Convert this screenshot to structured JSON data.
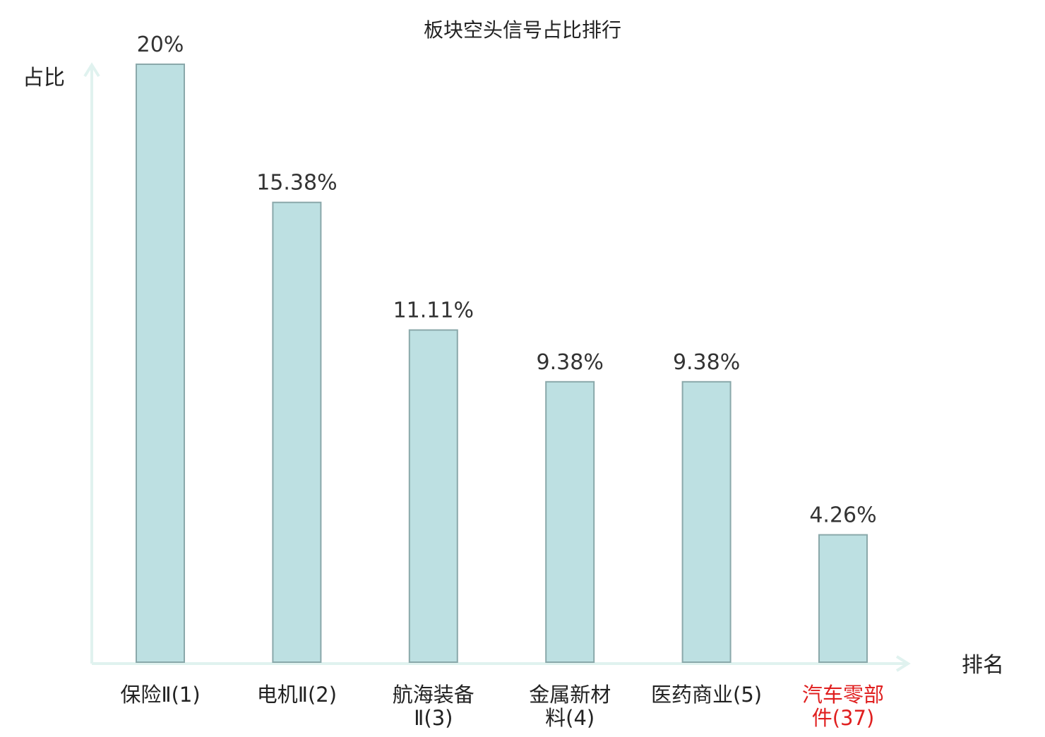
{
  "chart_data": {
    "type": "bar",
    "title": "板块空头信号占比排行",
    "ylabel": "占比",
    "xlabel": "排名",
    "ylim": [
      0,
      20
    ],
    "grid": false,
    "categories": [
      [
        "保险Ⅱ(1)"
      ],
      [
        "电机Ⅱ(2)"
      ],
      [
        "航海装备",
        "Ⅱ(3)"
      ],
      [
        "金属新材",
        "料(4)"
      ],
      [
        "医药商业(5)"
      ],
      [
        "汽车零部",
        "件(37)"
      ]
    ],
    "values": [
      20,
      15.38,
      11.11,
      9.38,
      9.38,
      4.26
    ],
    "value_labels": [
      "20%",
      "15.38%",
      "11.11%",
      "9.38%",
      "9.38%",
      "4.26%"
    ],
    "highlight_index": 5
  },
  "colors": {
    "bar_fill": "#bde0e2",
    "bar_stroke": "#8aa8aa",
    "axis": "#e0f2ef",
    "text": "#222222",
    "value_text": "#333333",
    "highlight_text": "#e02020"
  }
}
